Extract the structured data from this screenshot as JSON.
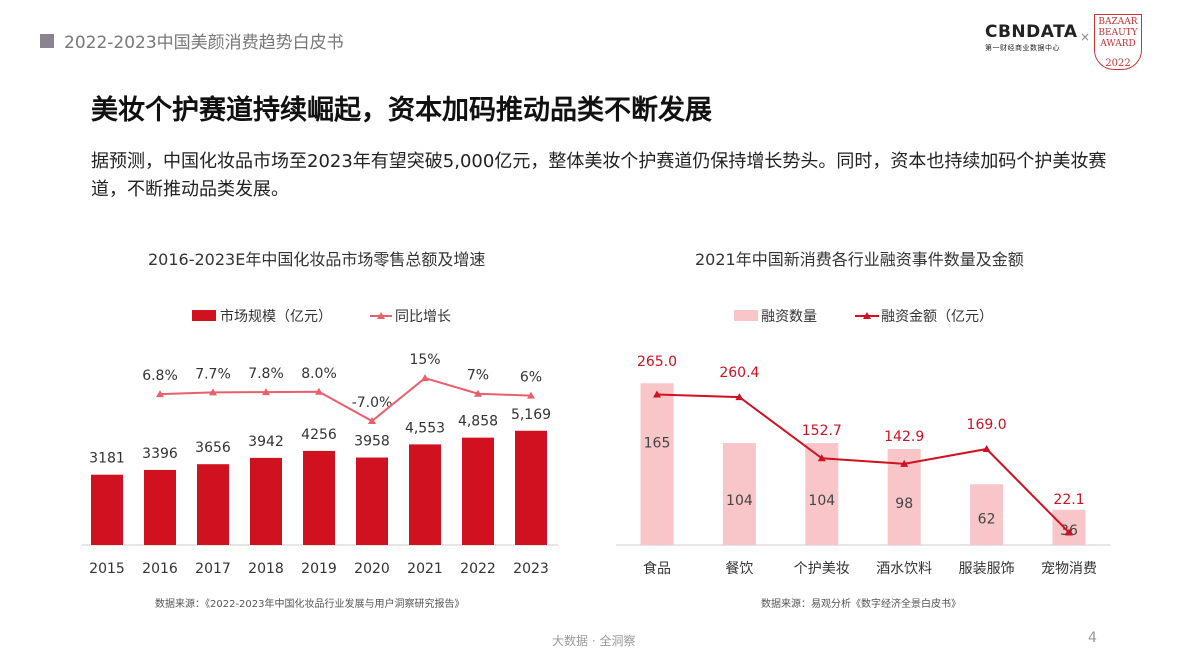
{
  "header": {
    "doc_title": "2022-2023中国美颜消费趋势白皮书",
    "logo_cbn": "CBNDATA",
    "logo_cbn_sub": "第一财经商业数据中心",
    "logo_x": "×",
    "award_text": "BAZAAR BEAUTY AWARD",
    "award_year": "2022"
  },
  "title": "美妆个护赛道持续崛起，资本加码推动品类不断发展",
  "intro": "据预测，中国化妆品市场至2023年有望突破5,000亿元，整体美妆个护赛道仍保持增长势头。同时，资本也持续加码个护美妆赛道，不断推动品类发展。",
  "colors": {
    "red": "#d0111f",
    "pink": "#f8c6c9",
    "line_light": "#e8606a"
  },
  "chart_data": [
    {
      "type": "bar+line",
      "title": "2016-2023E年中国化妆品市场零售总额及增速",
      "categories": [
        "2015",
        "2016",
        "2017",
        "2018",
        "2019",
        "2020",
        "2021",
        "2022",
        "2023"
      ],
      "series": [
        {
          "name": "市场规模（亿元）",
          "type": "bar",
          "values": [
            3181,
            3396,
            3656,
            3942,
            4256,
            3958,
            4553,
            4858,
            5169
          ],
          "labels": [
            "3181",
            "3396",
            "3656",
            "3942",
            "4256",
            "3958",
            "4,553",
            "4,858",
            "5,169"
          ]
        },
        {
          "name": "同比增长",
          "type": "line",
          "values": [
            null,
            6.8,
            7.7,
            7.8,
            8.0,
            -7.0,
            15,
            7,
            6
          ],
          "labels": [
            "",
            "6.8%",
            "7.7%",
            "7.8%",
            "8.0%",
            "-7.0%",
            "15%",
            "7%",
            "6%"
          ]
        }
      ],
      "legend": "top",
      "source": "数据来源：《2022-2023年中国化妆品行业发展与用户洞察研究报告》"
    },
    {
      "type": "bar+line",
      "title": "2021年中国新消费各行业融资事件数量及金额",
      "categories": [
        "食品",
        "餐饮",
        "个护美妆",
        "酒水饮料",
        "服装服饰",
        "宠物消费"
      ],
      "series": [
        {
          "name": "融资数量",
          "type": "bar",
          "values": [
            165,
            104,
            104,
            98,
            62,
            36
          ]
        },
        {
          "name": "融资金额（亿元）",
          "type": "line",
          "values": [
            265.0,
            260.4,
            152.7,
            142.9,
            169.0,
            22.1
          ],
          "labels": [
            "265.0",
            "260.4",
            "152.7",
            "142.9",
            "169.0",
            "22.1"
          ]
        }
      ],
      "legend": "top",
      "source": "数据来源：易观分析《数字经济全景白皮书》"
    }
  ],
  "footer": {
    "tagline": "大数据 · 全洞察",
    "page": "4"
  }
}
